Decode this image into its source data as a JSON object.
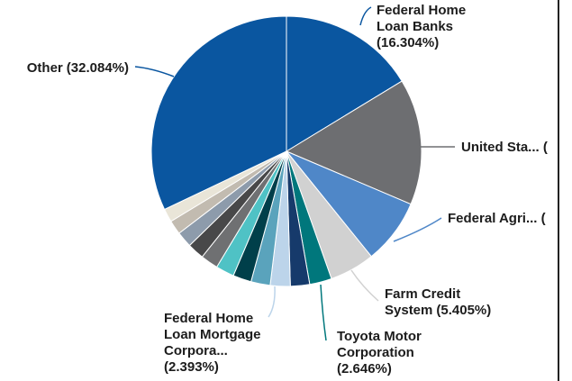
{
  "chart_data": {
    "type": "pie",
    "labels": [
      [
        "Federal Home",
        "Loan Banks"
      ],
      [
        "United Sta... ("
      ],
      [
        "Federal Agri... ("
      ],
      [
        "Farm Credit",
        "System"
      ],
      [
        "Toyota Motor",
        "Corporation"
      ],
      null,
      [
        "Federal Home",
        "Loan Mortgage",
        "Corpora..."
      ],
      null,
      null,
      null,
      null,
      null,
      null,
      null,
      null,
      [
        "Other"
      ]
    ],
    "values": [
      16.304,
      15.1,
      7.8,
      5.405,
      2.646,
      2.3,
      2.393,
      2.3,
      2.2,
      2.2,
      2.1,
      2.0,
      1.9,
      1.7,
      1.6,
      32.084
    ],
    "value_labels": [
      "(16.304%)",
      null,
      null,
      "(5.405%)",
      "(2.646%)",
      null,
      "(2.393%)",
      null,
      null,
      null,
      null,
      null,
      null,
      null,
      null,
      "(32.084%)"
    ],
    "colors": [
      "#0a56a0",
      "#6d6e71",
      "#4f87c8",
      "#d1d1d1",
      "#00777c",
      "#163a6b",
      "#bcd4ea",
      "#5aa3bc",
      "#003f4a",
      "#4fc2c5",
      "#6f7072",
      "#484849",
      "#8d9bab",
      "#c2bbb0",
      "#e9e5d8",
      "#0a56a0"
    ]
  }
}
